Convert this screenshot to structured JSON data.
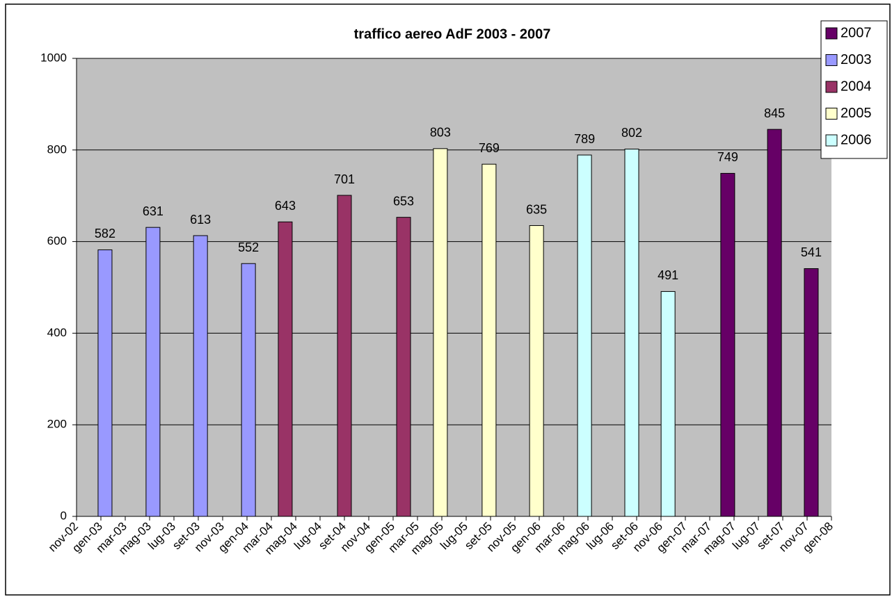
{
  "chart_data": {
    "type": "bar",
    "title": "traffico aereo AdF 2003 - 2007",
    "xlim": [
      0,
      31
    ],
    "xticks": [
      {
        "value": 0,
        "label": "nov-02"
      },
      {
        "value": 1,
        "label": "gen-03"
      },
      {
        "value": 2,
        "label": "mar-03"
      },
      {
        "value": 3,
        "label": "mag-03"
      },
      {
        "value": 4,
        "label": "lug-03"
      },
      {
        "value": 5,
        "label": "set-03"
      },
      {
        "value": 6,
        "label": "nov-03"
      },
      {
        "value": 7,
        "label": "gen-04"
      },
      {
        "value": 8,
        "label": "mar-04"
      },
      {
        "value": 9,
        "label": "mag-04"
      },
      {
        "value": 10,
        "label": "lug-04"
      },
      {
        "value": 11,
        "label": "set-04"
      },
      {
        "value": 12,
        "label": "nov-04"
      },
      {
        "value": 13,
        "label": "gen-05"
      },
      {
        "value": 14,
        "label": "mar-05"
      },
      {
        "value": 15,
        "label": "mag-05"
      },
      {
        "value": 16,
        "label": "lug-05"
      },
      {
        "value": 17,
        "label": "set-05"
      },
      {
        "value": 18,
        "label": "nov-05"
      },
      {
        "value": 19,
        "label": "gen-06"
      },
      {
        "value": 20,
        "label": "mar-06"
      },
      {
        "value": 21,
        "label": "mag-06"
      },
      {
        "value": 22,
        "label": "lug-06"
      },
      {
        "value": 23,
        "label": "set-06"
      },
      {
        "value": 24,
        "label": "nov-06"
      },
      {
        "value": 25,
        "label": "gen-07"
      },
      {
        "value": 26,
        "label": "mar-07"
      },
      {
        "value": 27,
        "label": "mag-07"
      },
      {
        "value": 28,
        "label": "lug-07"
      },
      {
        "value": 29,
        "label": "set-07"
      },
      {
        "value": 30,
        "label": "nov-07"
      },
      {
        "value": 31,
        "label": "gen-08"
      }
    ],
    "ylim": [
      0,
      1000
    ],
    "yticks": [
      0,
      200,
      400,
      600,
      800,
      1000
    ],
    "grid": true,
    "series": [
      {
        "name": "2007",
        "color": "#660066",
        "x": [
          26.74,
          28.66,
          30.17
        ],
        "values": [
          749,
          845,
          541
        ]
      },
      {
        "name": "2003",
        "color": "#9999ff",
        "x": [
          1.17,
          3.14,
          5.09,
          7.06
        ],
        "values": [
          582,
          631,
          613,
          552
        ]
      },
      {
        "name": "2004",
        "color": "#993366",
        "x": [
          8.57,
          11.0,
          13.43
        ],
        "values": [
          643,
          701,
          653
        ]
      },
      {
        "name": "2005",
        "color": "#ffffcc",
        "x": [
          14.94,
          16.94,
          18.89
        ],
        "values": [
          803,
          769,
          635
        ]
      },
      {
        "name": "2006",
        "color": "#ccffff",
        "x": [
          20.86,
          22.8,
          24.29
        ],
        "values": [
          789,
          802,
          491
        ]
      }
    ]
  }
}
